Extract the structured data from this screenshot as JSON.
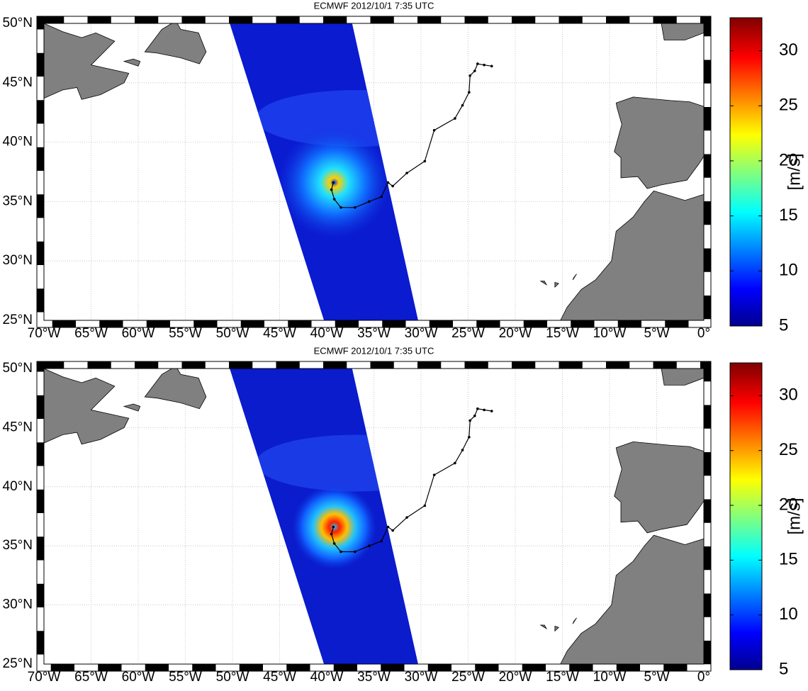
{
  "panels": [
    {
      "title": "ECMWF 2012/10/1 7:35 UTC",
      "xlim": [
        -70,
        0
      ],
      "ylim": [
        25,
        50
      ],
      "xticks": [
        {
          "value": -70,
          "label": "70°W"
        },
        {
          "value": -65,
          "label": "65°W"
        },
        {
          "value": -60,
          "label": "60°W"
        },
        {
          "value": -55,
          "label": "55°W"
        },
        {
          "value": -50,
          "label": "50°W"
        },
        {
          "value": -45,
          "label": "45°W"
        },
        {
          "value": -40,
          "label": "40°W"
        },
        {
          "value": -35,
          "label": "35°W"
        },
        {
          "value": -30,
          "label": "30°W"
        },
        {
          "value": -25,
          "label": "25°W"
        },
        {
          "value": -20,
          "label": "20°W"
        },
        {
          "value": -15,
          "label": "15°W"
        },
        {
          "value": -10,
          "label": "10°W"
        },
        {
          "value": -5,
          "label": "5°W"
        },
        {
          "value": 0,
          "label": "0°"
        }
      ],
      "yticks": [
        {
          "value": 25,
          "label": "25°N"
        },
        {
          "value": 30,
          "label": "30°N"
        },
        {
          "value": 35,
          "label": "35°N"
        },
        {
          "value": 40,
          "label": "40°N"
        },
        {
          "value": 45,
          "label": "45°N"
        },
        {
          "value": 50,
          "label": "50°N"
        }
      ],
      "colorbar": {
        "label": "[m/s]",
        "lim": [
          5,
          33
        ],
        "ticks": [
          5,
          10,
          15,
          20,
          25,
          30
        ]
      }
    },
    {
      "title": "ECMWF 2012/10/1 7:35 UTC",
      "xlim": [
        -70,
        0
      ],
      "ylim": [
        25,
        50
      ],
      "xticks": [
        {
          "value": -70,
          "label": "70°W"
        },
        {
          "value": -65,
          "label": "65°W"
        },
        {
          "value": -60,
          "label": "60°W"
        },
        {
          "value": -55,
          "label": "55°W"
        },
        {
          "value": -50,
          "label": "50°W"
        },
        {
          "value": -45,
          "label": "45°W"
        },
        {
          "value": -40,
          "label": "40°W"
        },
        {
          "value": -35,
          "label": "35°W"
        },
        {
          "value": -30,
          "label": "30°W"
        },
        {
          "value": -25,
          "label": "25°W"
        },
        {
          "value": -20,
          "label": "20°W"
        },
        {
          "value": -15,
          "label": "15°W"
        },
        {
          "value": -10,
          "label": "10°W"
        },
        {
          "value": -5,
          "label": "5°W"
        },
        {
          "value": 0,
          "label": "0°"
        }
      ],
      "yticks": [
        {
          "value": 25,
          "label": "25°N"
        },
        {
          "value": 30,
          "label": "30°N"
        },
        {
          "value": 35,
          "label": "35°N"
        },
        {
          "value": 40,
          "label": "40°N"
        },
        {
          "value": 45,
          "label": "45°N"
        },
        {
          "value": 50,
          "label": "50°N"
        }
      ],
      "colorbar": {
        "label": "[m/s]",
        "lim": [
          5,
          33
        ],
        "ticks": [
          5,
          10,
          15,
          20,
          25,
          30
        ]
      }
    }
  ]
}
